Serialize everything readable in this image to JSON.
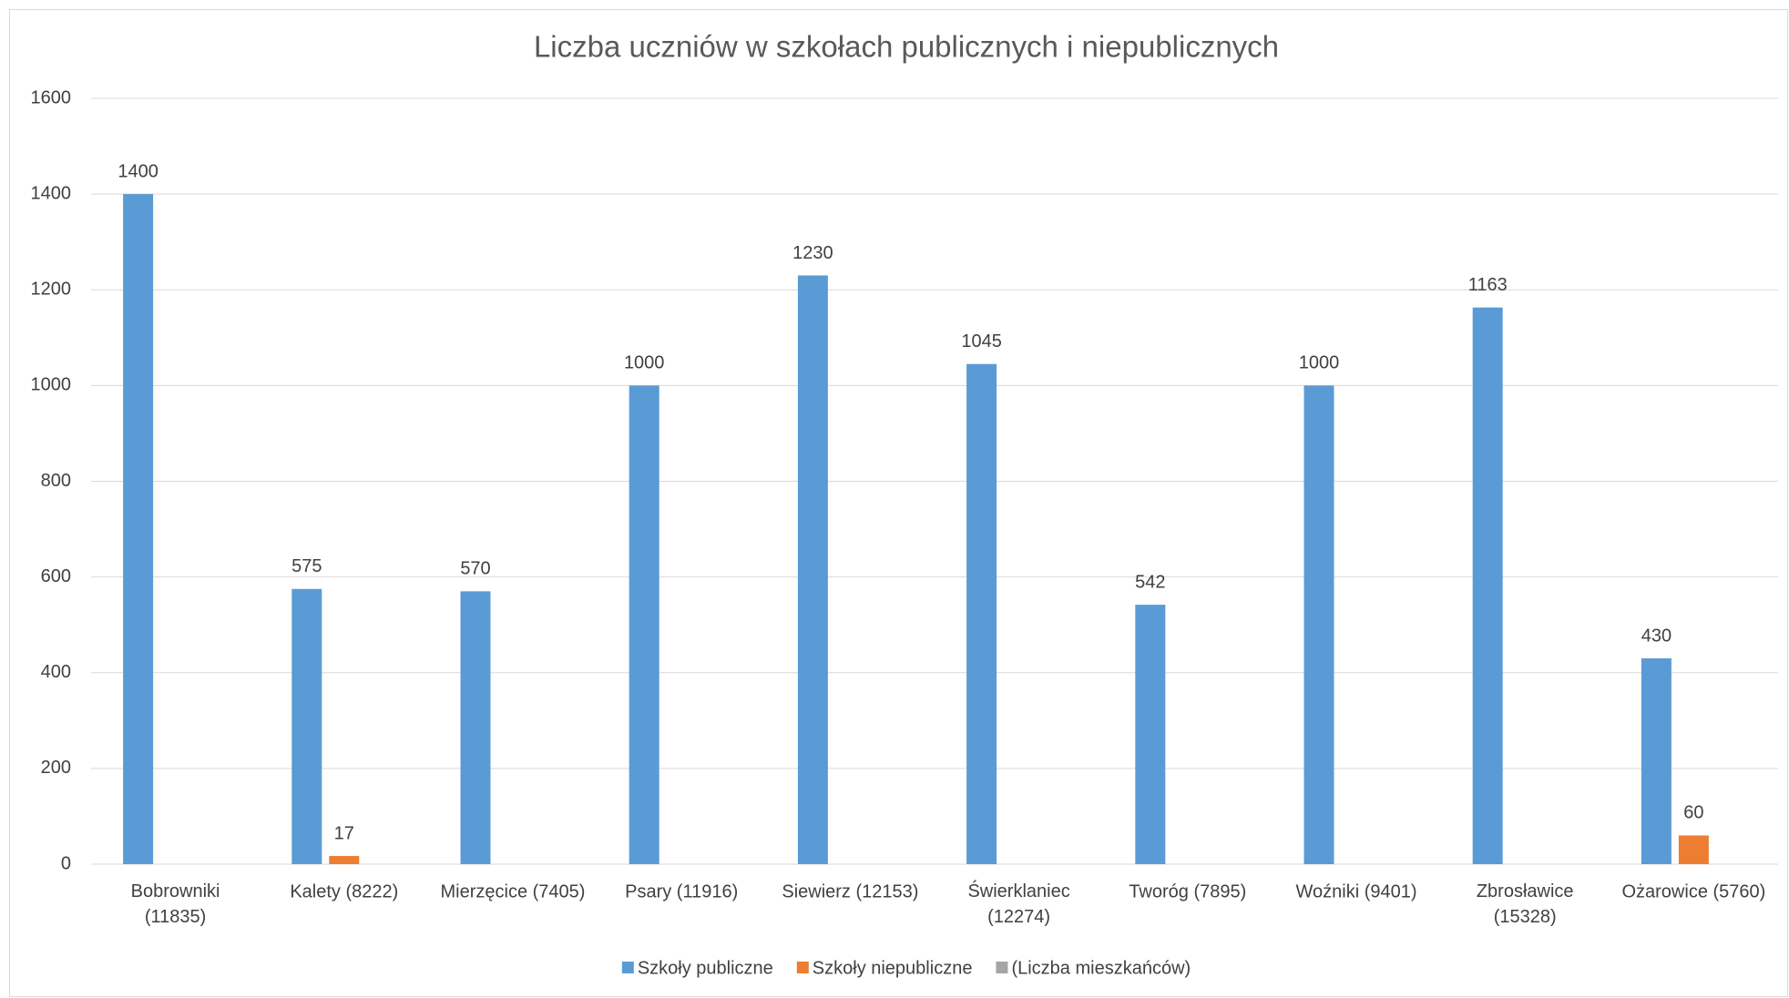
{
  "chart_data": {
    "type": "bar",
    "title": "Liczba uczniów w szkołach publicznych i niepublicznych",
    "categories": [
      "Bobrowniki (11835)",
      "Kalety (8222)",
      "Mierzęcice (7405)",
      "Psary (11916)",
      "Siewierz (12153)",
      "Świerklaniec (12274)",
      "Tworóg (7895)",
      "Woźniki (9401)",
      "Zbrosławice (15328)",
      "Ożarowice (5760)"
    ],
    "series": [
      {
        "name": "Szkoły publiczne",
        "color": "#5b9bd5",
        "values": [
          1400,
          575,
          570,
          1000,
          1230,
          1045,
          542,
          1000,
          1163,
          430
        ]
      },
      {
        "name": "Szkoły niepubliczne",
        "color": "#ed7d31",
        "values": [
          null,
          17,
          null,
          null,
          null,
          null,
          null,
          null,
          null,
          60
        ]
      },
      {
        "name": "(Liczba mieszkańców)",
        "color": "#a5a5a5",
        "values": [
          null,
          null,
          null,
          null,
          null,
          null,
          null,
          null,
          null,
          null
        ]
      }
    ],
    "ylim": [
      0,
      1600
    ],
    "yticks": [
      0,
      200,
      400,
      600,
      800,
      1000,
      1200,
      1400,
      1600
    ],
    "grid": true,
    "legend": "bottom"
  }
}
